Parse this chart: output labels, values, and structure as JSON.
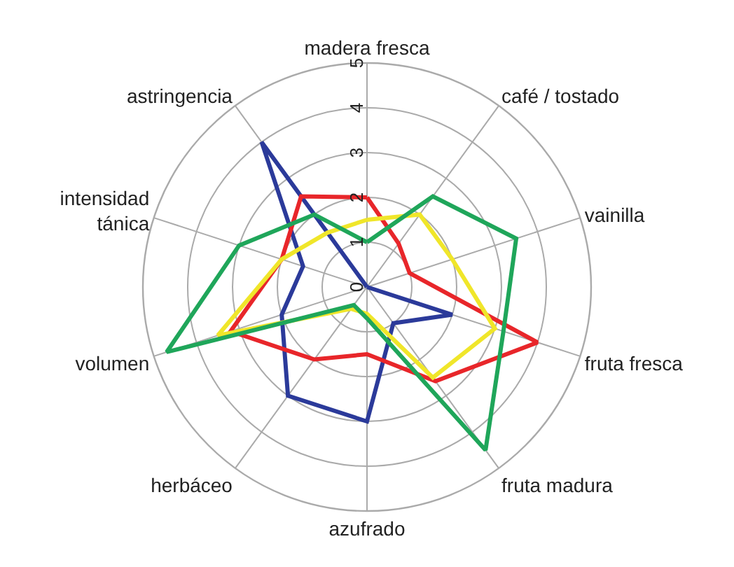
{
  "chart_data": {
    "type": "radar",
    "categories": [
      "madera fresca",
      "café / tostado",
      "vainilla",
      "fruta fresca",
      "fruta madura",
      "azufrado",
      "herbáceo",
      "volumen",
      "intensidad\ntánica",
      "astringencia"
    ],
    "series": [
      {
        "color": "#2b3a9a",
        "values": [
          0,
          0,
          0,
          2.0,
          1.0,
          3.0,
          3.0,
          2.0,
          1.5,
          4.0
        ]
      },
      {
        "color": "#e8262a",
        "values": [
          2.0,
          1.2,
          1.0,
          4.0,
          2.6,
          1.5,
          2.0,
          3.2,
          2.0,
          2.5
        ]
      },
      {
        "color": "#f0e62a",
        "values": [
          1.5,
          2.0,
          2.0,
          3.0,
          2.5,
          0.6,
          0.6,
          3.5,
          2.0,
          1.5
        ]
      },
      {
        "color": "#1fa65a",
        "values": [
          1.0,
          2.5,
          3.5,
          3.2,
          4.5,
          0.7,
          0.5,
          4.7,
          3.0,
          2.0
        ]
      }
    ],
    "ylim": [
      0,
      5
    ],
    "yticks": [
      0,
      1,
      2,
      3,
      4,
      5
    ],
    "grid": true
  }
}
